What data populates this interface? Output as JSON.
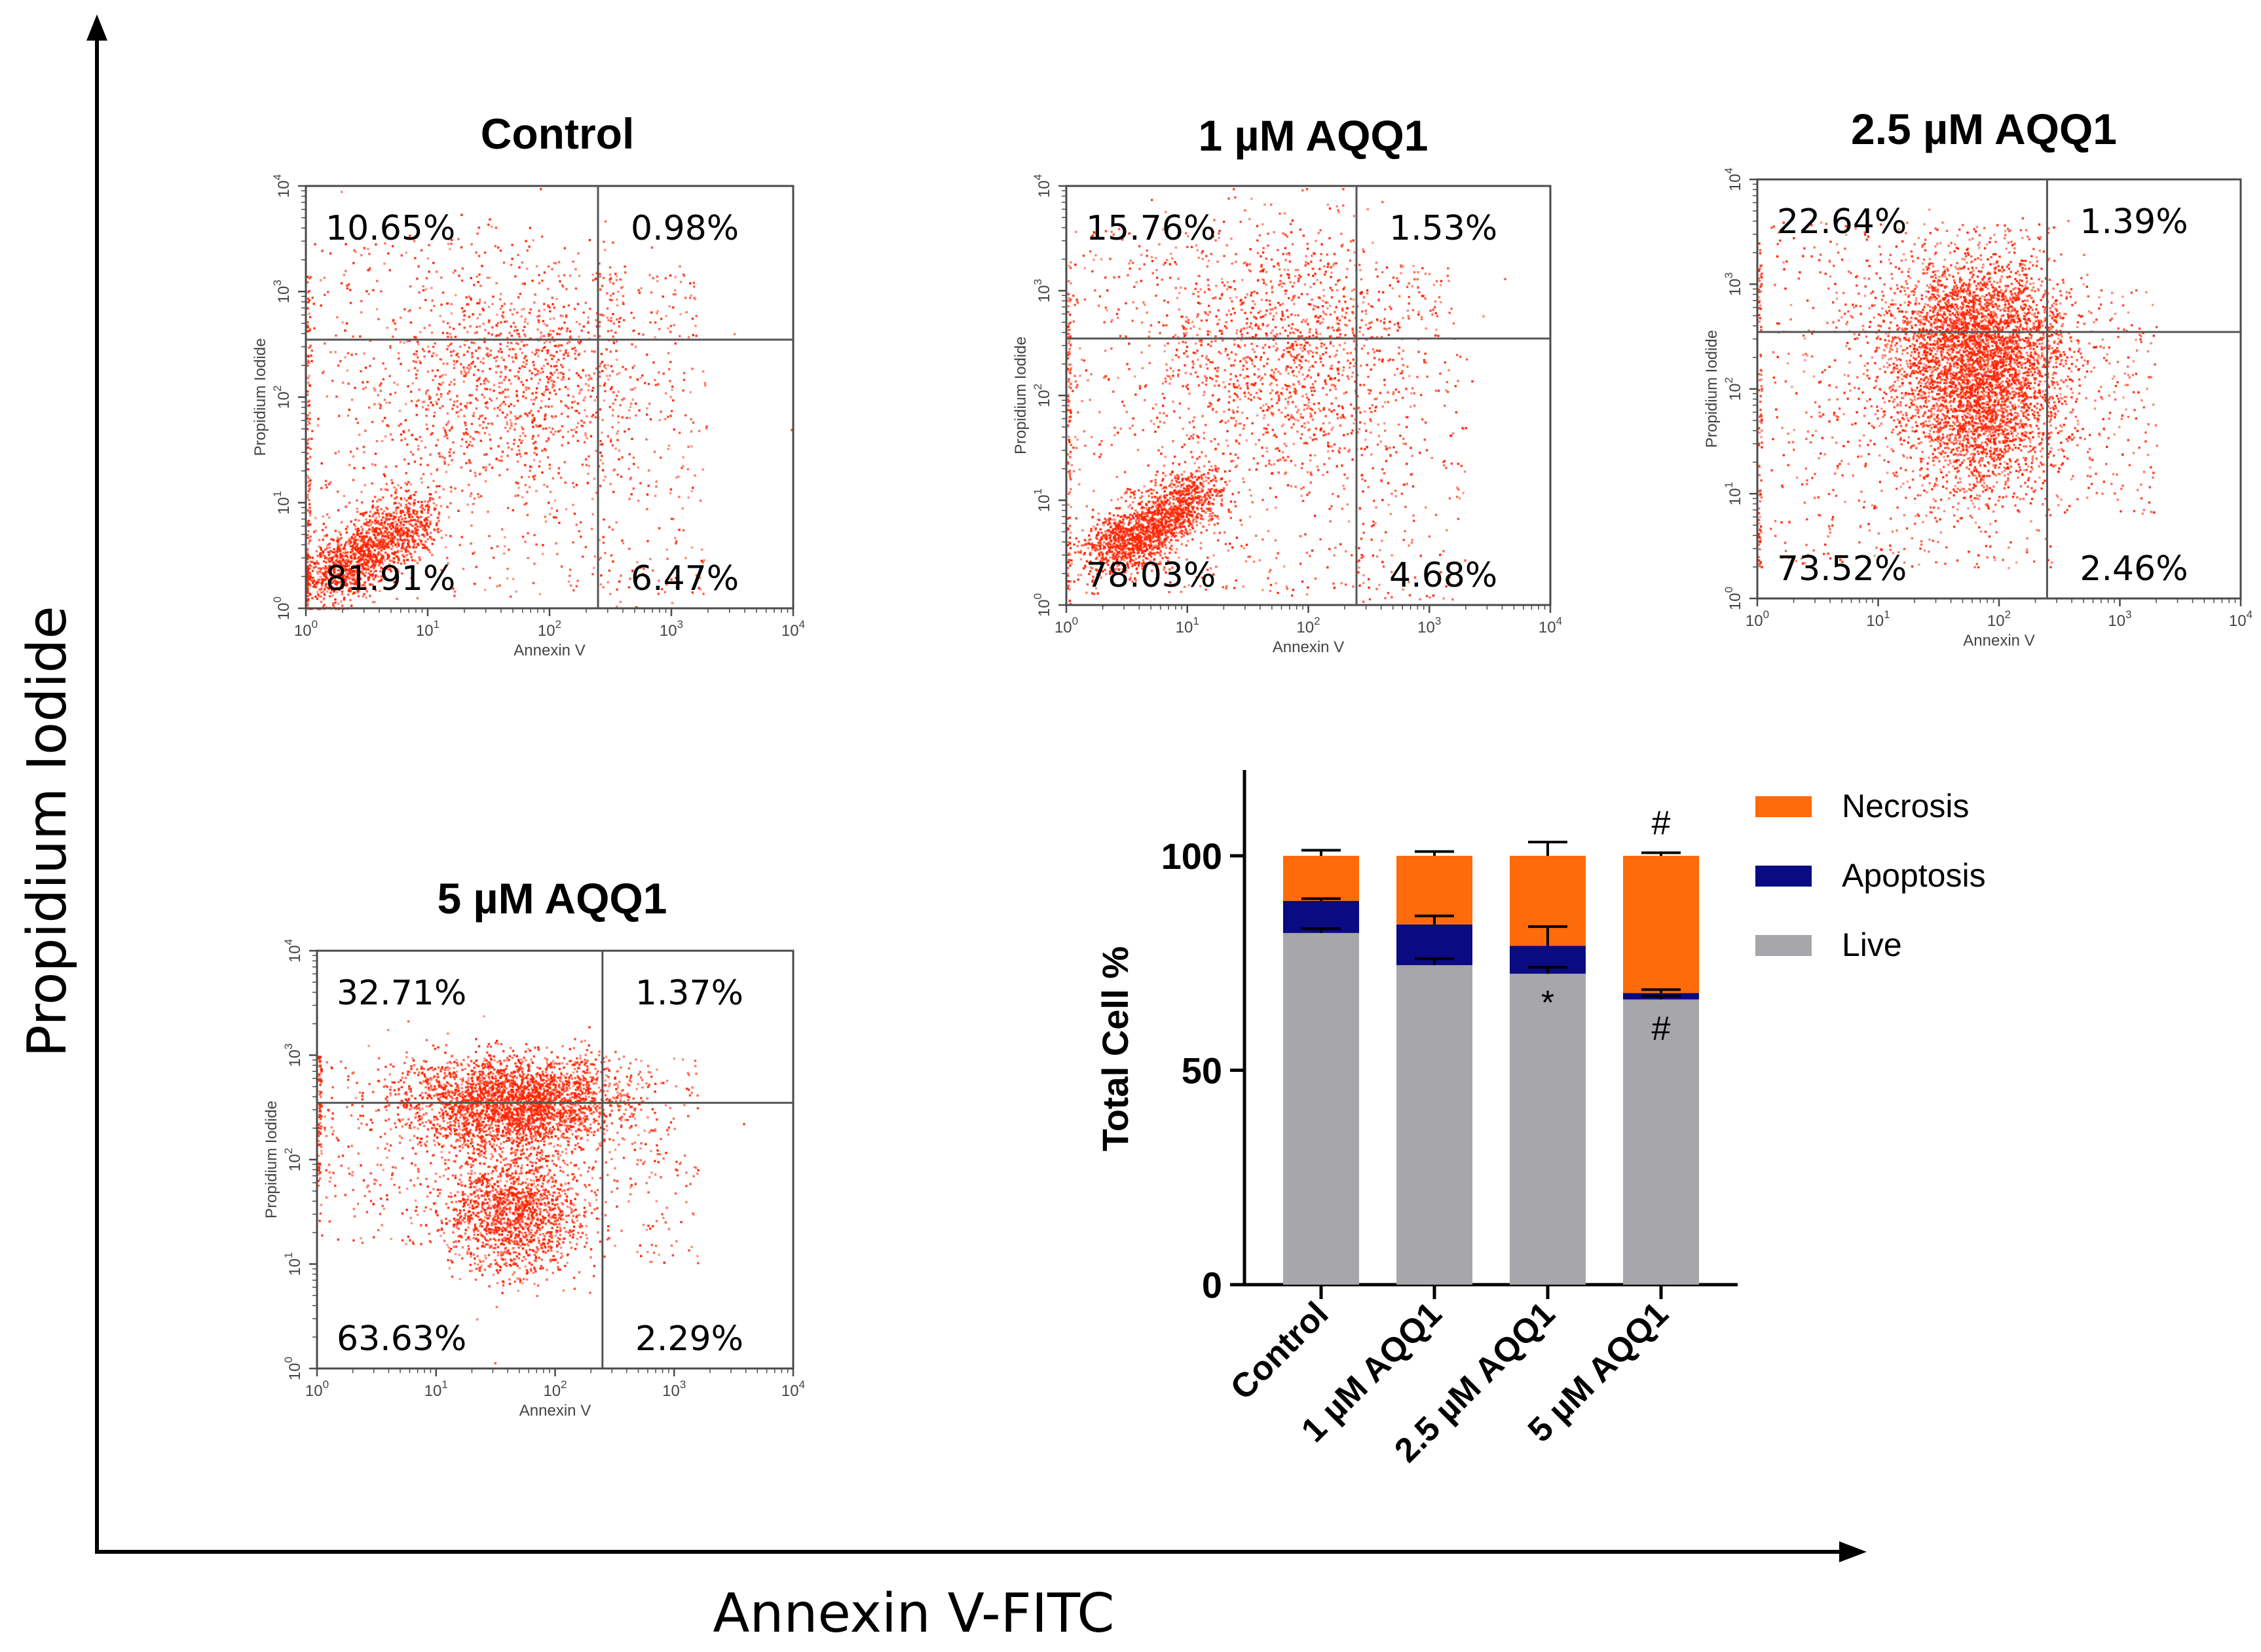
{
  "figure": {
    "x_axis_title": "Annexin V-FITC",
    "y_axis_title": "Propidium Iodide"
  },
  "flow_common": {
    "x_axis_label": "Annexin V",
    "y_axis_label": "Propidium Iodide",
    "tick_base": "10",
    "tick_exponents": [
      "0",
      "1",
      "2",
      "3",
      "4"
    ]
  },
  "chart_data": [
    {
      "type": "scatter",
      "title": "Control",
      "xlabel": "Annexin V",
      "ylabel": "Propidium Iodide",
      "xscale": "log",
      "yscale": "log",
      "xlim": [
        1,
        10000
      ],
      "ylim": [
        1,
        10000
      ],
      "gates": {
        "x": 250,
        "y": 350
      },
      "quadrants": {
        "upper_left": "10.65%",
        "upper_right": "0.98%",
        "lower_left": "81.91%",
        "lower_right": "6.47%"
      },
      "point_color": "#ff2200"
    },
    {
      "type": "scatter",
      "title": "1 µM AQQ1",
      "xlabel": "Annexin V",
      "ylabel": "Propidium Iodide",
      "xscale": "log",
      "yscale": "log",
      "xlim": [
        1,
        10000
      ],
      "ylim": [
        1,
        10000
      ],
      "gates": {
        "x": 250,
        "y": 350
      },
      "quadrants": {
        "upper_left": "15.76%",
        "upper_right": "1.53%",
        "lower_left": "78.03%",
        "lower_right": "4.68%"
      },
      "point_color": "#ff2200"
    },
    {
      "type": "scatter",
      "title": "2.5 µM AQQ1",
      "xlabel": "Annexin V",
      "ylabel": "Propidium Iodide",
      "xscale": "log",
      "yscale": "log",
      "xlim": [
        1,
        10000
      ],
      "ylim": [
        1,
        10000
      ],
      "gates": {
        "x": 250,
        "y": 350
      },
      "quadrants": {
        "upper_left": "22.64%",
        "upper_right": "1.39%",
        "lower_left": "73.52%",
        "lower_right": "2.46%"
      },
      "point_color": "#ff2200"
    },
    {
      "type": "scatter",
      "title": "5 µM AQQ1",
      "xlabel": "Annexin V",
      "ylabel": "Propidium Iodide",
      "xscale": "log",
      "yscale": "log",
      "xlim": [
        1,
        10000
      ],
      "ylim": [
        1,
        10000
      ],
      "gates": {
        "x": 250,
        "y": 350
      },
      "quadrants": {
        "upper_left": "32.71%",
        "upper_right": "1.37%",
        "lower_left": "63.63%",
        "lower_right": "2.29%"
      },
      "point_color": "#ff2200"
    },
    {
      "type": "bar",
      "stacked": true,
      "categories": [
        "Control",
        "1 µM AQQ1",
        "2.5 µM AQQ1",
        "5 µM AQQ1"
      ],
      "ylabel": "Total Cell %",
      "ylim": [
        0,
        120
      ],
      "yticks": [
        0,
        50,
        100
      ],
      "series": [
        {
          "name": "Live",
          "values": [
            82,
            74.5,
            72.5,
            66.5
          ],
          "errors": [
            1.0,
            1.5,
            1.5,
            0.8
          ],
          "color": "#a6a6ab"
        },
        {
          "name": "Apoptosis",
          "values": [
            7.5,
            9.5,
            6.5,
            1.5
          ],
          "errors": [
            0.5,
            2.0,
            4.5,
            0.8
          ],
          "color": "#0a0a82"
        },
        {
          "name": "Necrosis",
          "values": [
            10.5,
            16,
            21,
            32
          ],
          "errors": [
            1.3,
            1.0,
            3.2,
            0.7
          ],
          "color": "#ff6a0a"
        }
      ],
      "legend_order": [
        "Necrosis",
        "Apoptosis",
        "Live"
      ],
      "annotations": [
        {
          "category": "2.5 µM AQQ1",
          "series": "Live",
          "text": "*"
        },
        {
          "category": "5 µM AQQ1",
          "series": "Live",
          "text": "#"
        },
        {
          "category": "5 µM AQQ1",
          "series": "Necrosis",
          "text": "#"
        }
      ]
    }
  ]
}
